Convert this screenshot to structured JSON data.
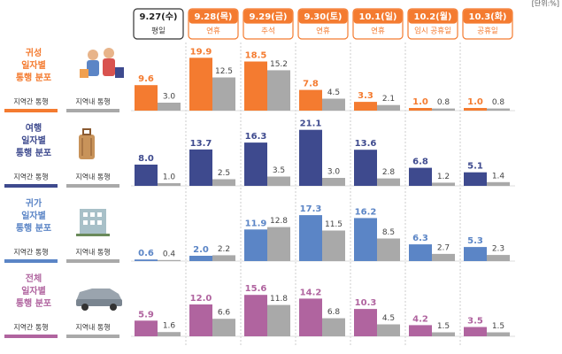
{
  "unit": "[단위:%]",
  "header": {
    "dates": [
      "9.27(수)",
      "9.28(목)",
      "9.29(금)",
      "9.30(토)",
      "10.1(일)",
      "10.2(월)",
      "10.3(화)"
    ],
    "day_types": [
      "평일",
      "연휴",
      "추석",
      "연휴",
      "연휴",
      "임시 공휴일",
      "공휴일"
    ]
  },
  "chart_data": [
    {
      "type": "bar",
      "title": [
        "귀성",
        "일자별",
        "통행 분포"
      ],
      "series": [
        {
          "name": "지역간 통행",
          "color": "#f47b30",
          "values": [
            9.6,
            19.9,
            18.5,
            7.8,
            3.3,
            1.0,
            1.0
          ],
          "value_labels": [
            "9.6",
            "19.9",
            "18.5",
            "7.8",
            "3.3",
            "1.0",
            "1.0"
          ]
        },
        {
          "name": "지역내 통행",
          "color": "#a9a9a9",
          "values": [
            3.0,
            12.5,
            15.2,
            4.5,
            2.1,
            0.8,
            0.8
          ],
          "value_labels": [
            "3.0",
            "12.5",
            "15.2",
            "4.5",
            "2.1",
            "0.8",
            "0.8"
          ]
        }
      ]
    },
    {
      "type": "bar",
      "title": [
        "여행",
        "일자별",
        "통행 분포"
      ],
      "series": [
        {
          "name": "지역간 통행",
          "color": "#3e4a8e",
          "values": [
            8.0,
            13.7,
            16.3,
            21.1,
            13.6,
            6.8,
            5.1
          ],
          "value_labels": [
            "8.0",
            "13.7",
            "16.3",
            "21.1",
            "13.6",
            "6.8",
            "5.1"
          ]
        },
        {
          "name": "지역내 통행",
          "color": "#a9a9a9",
          "values": [
            1.0,
            2.5,
            3.5,
            3.0,
            2.8,
            1.2,
            1.4
          ],
          "value_labels": [
            "1.0",
            "2.5",
            "3.5",
            "3.0",
            "2.8",
            "1.2",
            "1.4"
          ]
        }
      ]
    },
    {
      "type": "bar",
      "title": [
        "귀가",
        "일자별",
        "통행 분포"
      ],
      "series": [
        {
          "name": "지역간 통행",
          "color": "#5b85c6",
          "values": [
            0.6,
            2.0,
            11.9,
            17.3,
            16.2,
            6.3,
            5.3
          ],
          "value_labels": [
            "0.6",
            "2.0",
            "11.9",
            "17.3",
            "16.2",
            "6.3",
            "5.3"
          ]
        },
        {
          "name": "지역내 통행",
          "color": "#a9a9a9",
          "values": [
            0.4,
            2.2,
            12.8,
            11.5,
            8.5,
            2.7,
            2.3
          ],
          "value_labels": [
            "0.4",
            "2.2",
            "12.8",
            "11.5",
            "8.5",
            "2.7",
            "2.3"
          ]
        }
      ]
    },
    {
      "type": "bar",
      "title": [
        "전체",
        "일자별",
        "통행 분포"
      ],
      "series": [
        {
          "name": "지역간 통행",
          "color": "#b0649f",
          "values": [
            5.9,
            12.0,
            15.6,
            14.2,
            10.3,
            4.2,
            3.5
          ],
          "value_labels": [
            "5.9",
            "12.0",
            "15.6",
            "14.2",
            "10.3",
            "4.2",
            "3.5"
          ]
        },
        {
          "name": "지역내 통행",
          "color": "#a9a9a9",
          "values": [
            1.6,
            6.6,
            11.8,
            6.8,
            4.5,
            1.5,
            1.5
          ],
          "value_labels": [
            "1.6",
            "6.6",
            "11.8",
            "6.8",
            "4.5",
            "1.5",
            "1.5"
          ]
        }
      ]
    }
  ]
}
